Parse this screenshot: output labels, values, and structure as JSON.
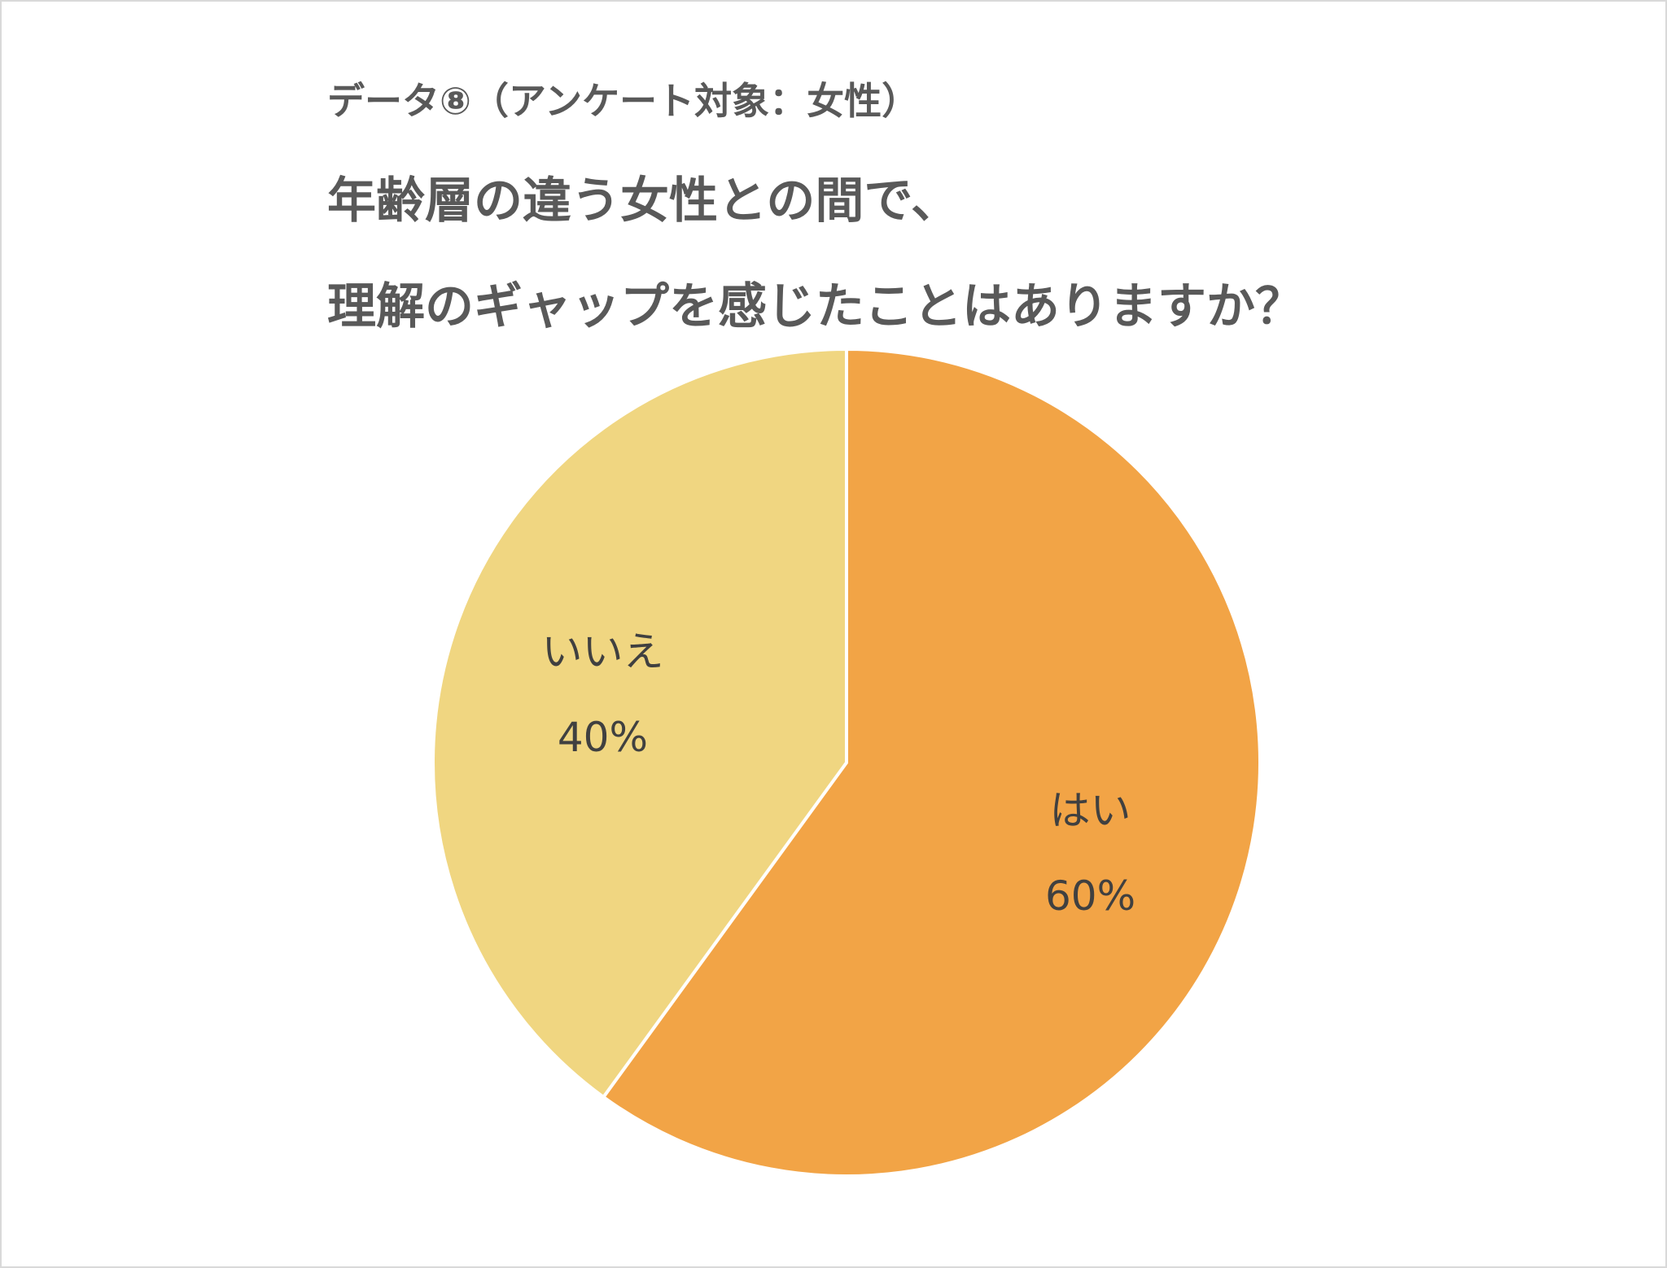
{
  "chart_data": {
    "type": "pie",
    "subtitle": "データ⑧（アンケート対象：女性）",
    "title_lines": [
      "年齢層の違う女性との間で、",
      "理解のギャップを感じたことはありますか？"
    ],
    "slices": [
      {
        "label": "はい",
        "value": 60,
        "value_label": "60%",
        "color": "#f2a446"
      },
      {
        "label": "いいえ",
        "value": 40,
        "value_label": "40%",
        "color": "#f0d681"
      }
    ],
    "start_angle": "12 o'clock, clockwise",
    "separator_color": "#ffffff"
  }
}
